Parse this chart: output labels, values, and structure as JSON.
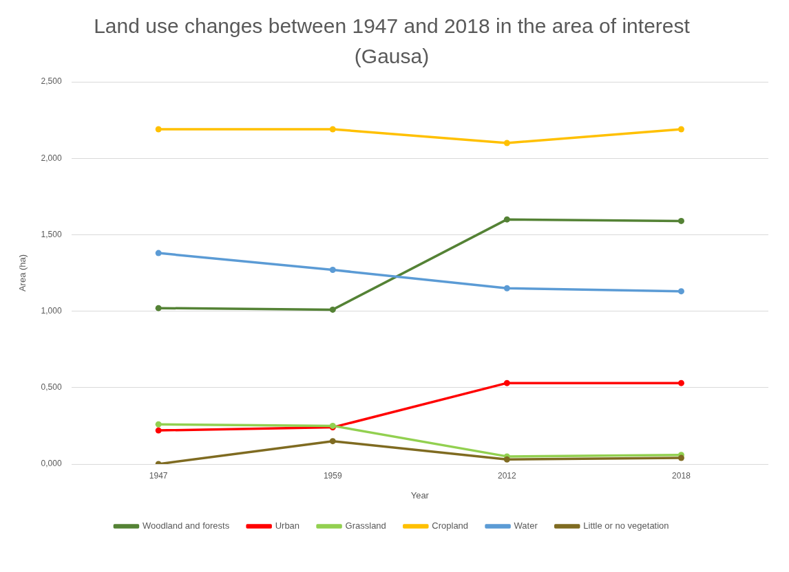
{
  "chart_data": {
    "type": "line",
    "title": "Land use changes between 1947 and 2018 in the area of interest (Gausa)",
    "xlabel": "Year",
    "ylabel": "Area (ha)",
    "categories": [
      "1947",
      "1959",
      "2012",
      "2018"
    ],
    "series": [
      {
        "name": "Woodland and forests",
        "color": "#548235",
        "values": [
          1.02,
          1.01,
          1.6,
          1.59
        ]
      },
      {
        "name": "Urban",
        "color": "#ff0000",
        "values": [
          0.22,
          0.24,
          0.53,
          0.53
        ]
      },
      {
        "name": "Grassland",
        "color": "#92d050",
        "values": [
          0.26,
          0.25,
          0.05,
          0.06
        ]
      },
      {
        "name": "Cropland",
        "color": "#ffc000",
        "values": [
          2.19,
          2.19,
          2.1,
          2.19
        ]
      },
      {
        "name": "Water",
        "color": "#5b9bd5",
        "values": [
          1.38,
          1.27,
          1.15,
          1.13
        ]
      },
      {
        "name": "Little or no vegetation",
        "color": "#7f6b21",
        "values": [
          0,
          0.15,
          0.03,
          0.04
        ]
      }
    ],
    "ylim": [
      0,
      2.5
    ],
    "yticks": [
      {
        "value": 0,
        "label": "0,000"
      },
      {
        "value": 0.5,
        "label": "0,500"
      },
      {
        "value": 1,
        "label": "1,000"
      },
      {
        "value": 1.5,
        "label": "1,500"
      },
      {
        "value": 2,
        "label": "2,000"
      },
      {
        "value": 2.5,
        "label": "2,500"
      }
    ],
    "grid": "y",
    "legend": "bottom",
    "marker": "circle",
    "line_style": "solid"
  }
}
